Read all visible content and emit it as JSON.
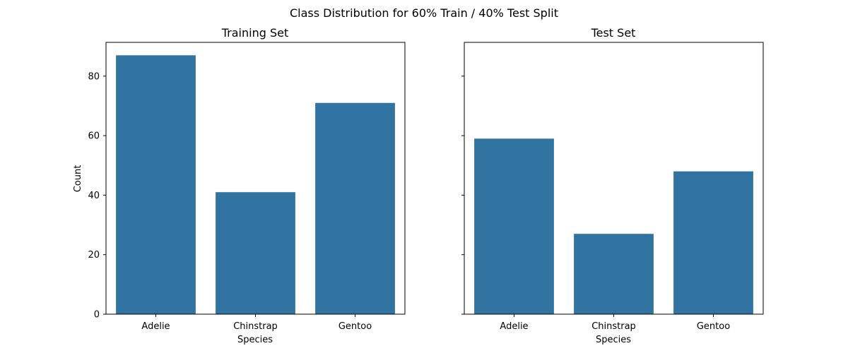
{
  "figure_title": "Class Distribution for 60% Train / 40% Test Split",
  "chart_data": [
    {
      "type": "bar",
      "title": "Training Set",
      "xlabel": "Species",
      "ylabel": "Count",
      "categories": [
        "Adelie",
        "Chinstrap",
        "Gentoo"
      ],
      "values": [
        87,
        41,
        71
      ],
      "ylim": [
        0,
        91.35
      ],
      "yticks": [
        0,
        20,
        40,
        60,
        80
      ],
      "grid": false,
      "color": "#3274a1"
    },
    {
      "type": "bar",
      "title": "Test Set",
      "xlabel": "Species",
      "ylabel": "",
      "categories": [
        "Adelie",
        "Chinstrap",
        "Gentoo"
      ],
      "values": [
        59,
        27,
        48
      ],
      "ylim": [
        0,
        91.35
      ],
      "yticks": [
        0,
        20,
        40,
        60,
        80
      ],
      "ytick_labels_shown": false,
      "grid": false,
      "color": "#3274a1"
    }
  ]
}
